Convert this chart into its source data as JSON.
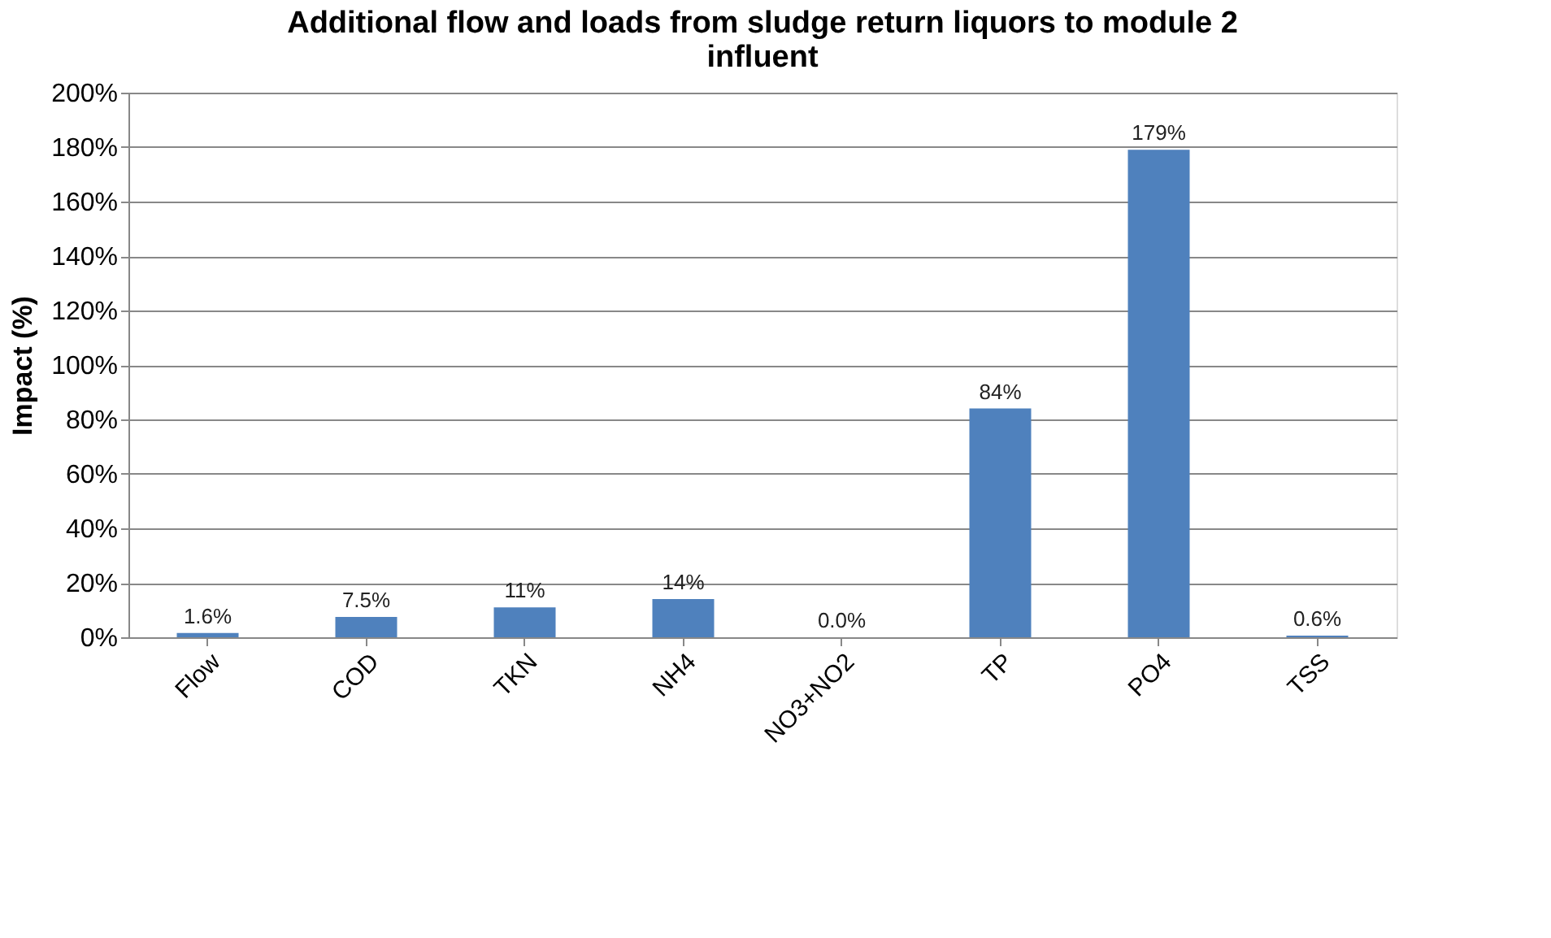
{
  "chart_data": {
    "type": "bar",
    "title": "Additional flow and loads from sludge return liquors to module 2 influent",
    "ylabel": "Impact (%)",
    "categories": [
      "Flow",
      "COD",
      "TKN",
      "NH4",
      "NO3+NO2",
      "TP",
      "PO4",
      "TSS"
    ],
    "values": [
      1.6,
      7.5,
      11,
      14,
      0.0,
      84,
      179,
      0.6
    ],
    "value_labels": [
      "1.6%",
      "7.5%",
      "11%",
      "14%",
      "0.0%",
      "84%",
      "179%",
      "0.6%"
    ],
    "color": "#4f81bd",
    "ylim": [
      0,
      200
    ],
    "yticks": [
      {
        "value": 0,
        "label": "0%"
      },
      {
        "value": 20,
        "label": "20%"
      },
      {
        "value": 40,
        "label": "40%"
      },
      {
        "value": 60,
        "label": "60%"
      },
      {
        "value": 80,
        "label": "80%"
      },
      {
        "value": 100,
        "label": "100%"
      },
      {
        "value": 120,
        "label": "120%"
      },
      {
        "value": 140,
        "label": "140%"
      },
      {
        "value": 160,
        "label": "160%"
      },
      {
        "value": 180,
        "label": "180%"
      },
      {
        "value": 200,
        "label": "200%"
      }
    ],
    "grid": "y"
  }
}
